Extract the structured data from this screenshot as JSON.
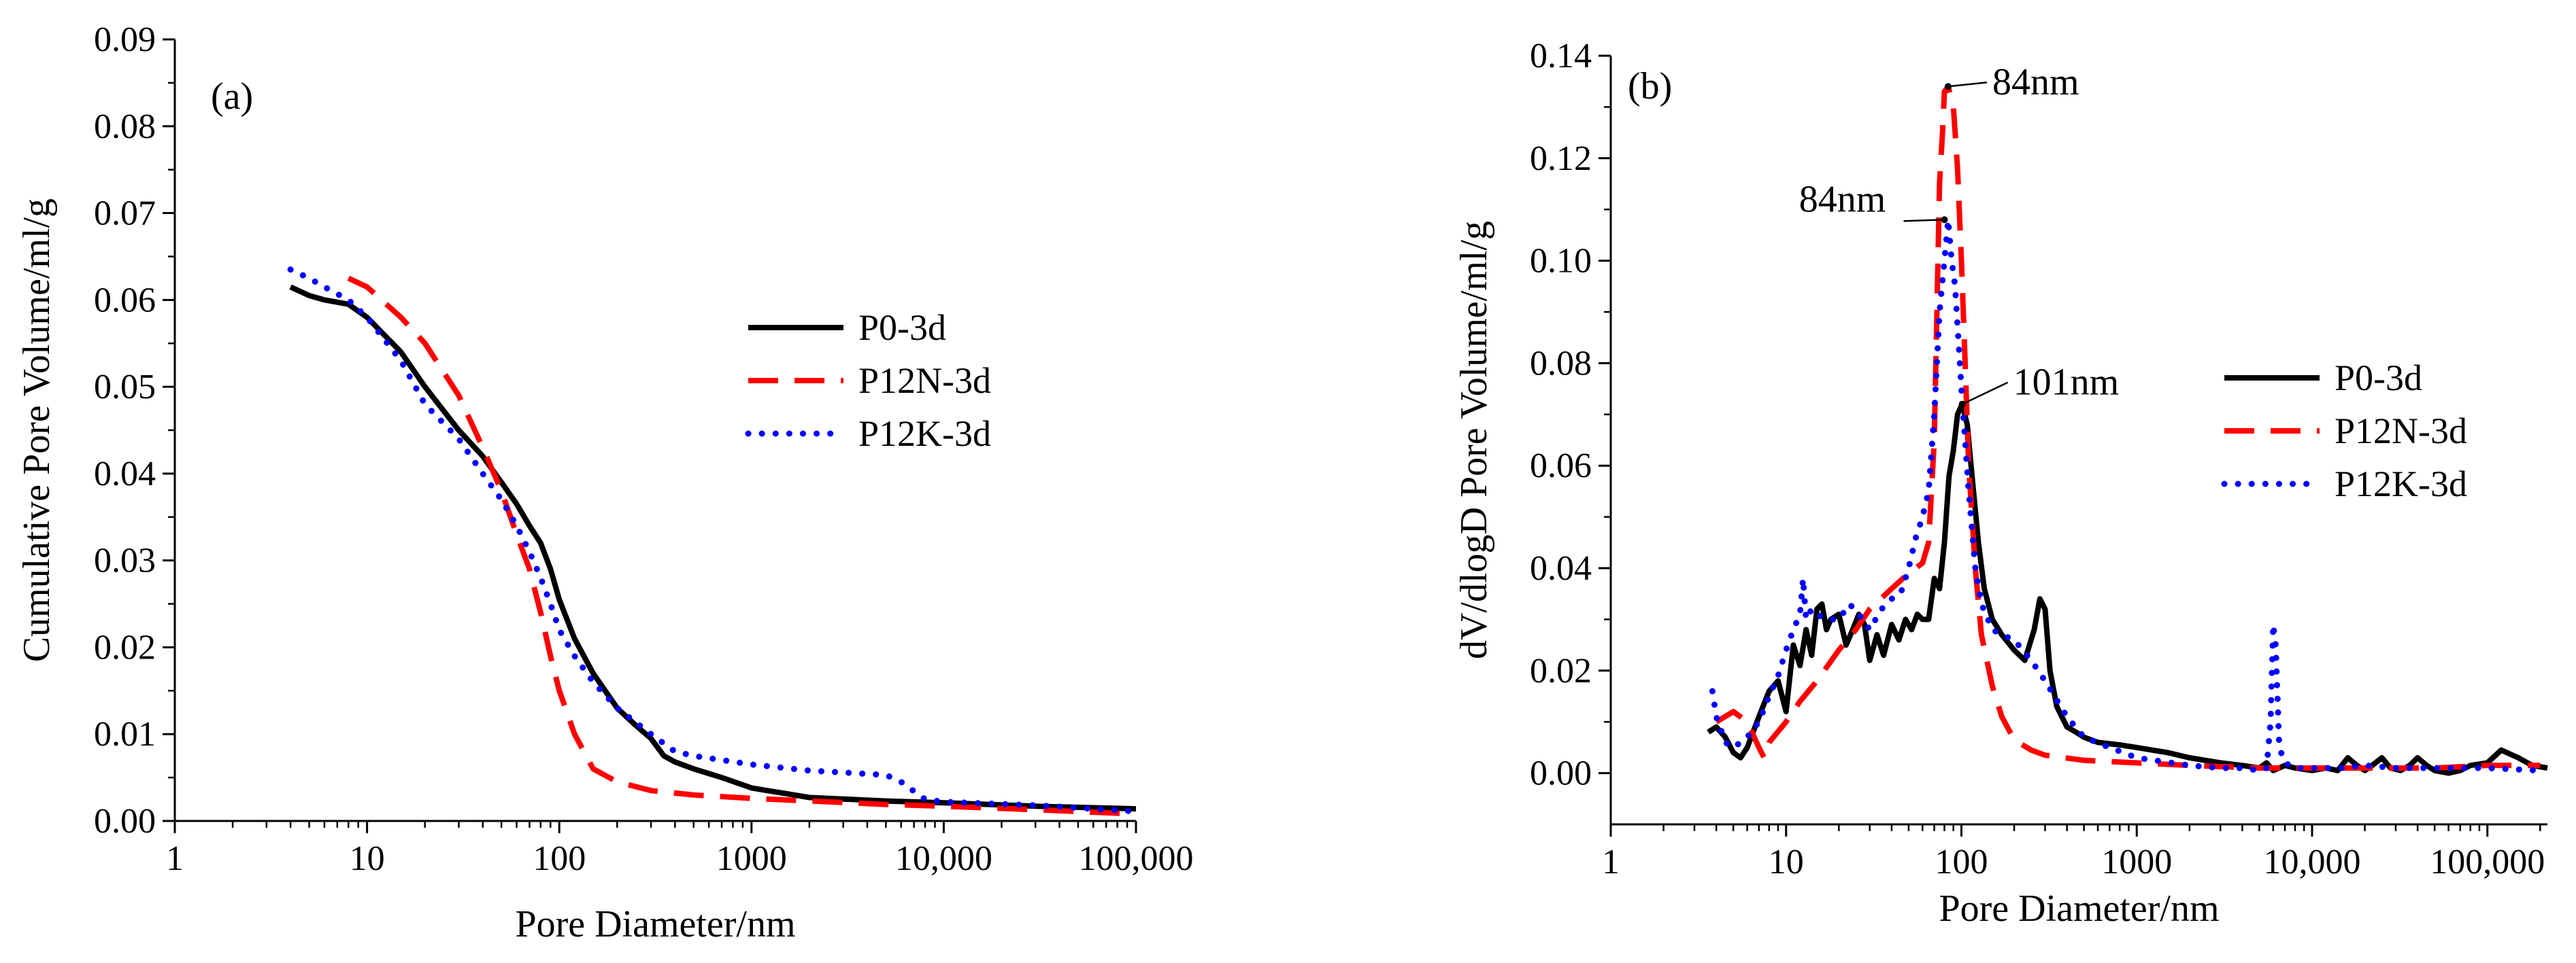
{
  "chart_data": [
    {
      "panel": "(a)",
      "type": "line",
      "title": "",
      "xlabel": "Pore Diameter/nm",
      "ylabel": "Cumulative Pore Volume/ml/g",
      "xscale": "log",
      "xlim": [
        1,
        100000
      ],
      "ylim": [
        0,
        0.09
      ],
      "xticks": [
        1,
        10,
        100,
        1000,
        10000,
        100000
      ],
      "xtick_labels": [
        "1",
        "10",
        "100",
        "1000",
        "10,000",
        "100,000"
      ],
      "yticks": [
        0,
        0.01,
        0.02,
        0.03,
        0.04,
        0.05,
        0.06,
        0.07,
        0.08,
        0.09
      ],
      "ytick_labels": [
        "0.00",
        "0.01",
        "0.02",
        "0.03",
        "0.04",
        "0.05",
        "0.06",
        "0.07",
        "0.08",
        "0.09"
      ],
      "legend_position": "center-right",
      "series": [
        {
          "name": "P0-3d",
          "color": "#000000",
          "style": "solid",
          "x": [
            4,
            5,
            6,
            8,
            10,
            15,
            20,
            30,
            40,
            50,
            60,
            70,
            80,
            90,
            100,
            120,
            150,
            200,
            250,
            300,
            350,
            400,
            500,
            700,
            1000,
            2000,
            5000,
            10000,
            30000,
            100000
          ],
          "y": [
            0.0615,
            0.0605,
            0.06,
            0.0595,
            0.058,
            0.054,
            0.05,
            0.045,
            0.042,
            0.039,
            0.0365,
            0.034,
            0.032,
            0.029,
            0.0255,
            0.021,
            0.017,
            0.013,
            0.011,
            0.0095,
            0.0075,
            0.0068,
            0.006,
            0.005,
            0.0038,
            0.0027,
            0.0023,
            0.0021,
            0.0017,
            0.0014
          ]
        },
        {
          "name": "P12N-3d",
          "color": "#ff0000",
          "style": "dashed",
          "x": [
            8,
            10,
            15,
            20,
            30,
            40,
            50,
            60,
            70,
            80,
            90,
            100,
            120,
            150,
            200,
            300,
            500,
            1000,
            2000,
            5000,
            10000,
            30000,
            100000
          ],
          "y": [
            0.0625,
            0.0615,
            0.058,
            0.055,
            0.049,
            0.043,
            0.038,
            0.033,
            0.029,
            0.024,
            0.019,
            0.015,
            0.01,
            0.006,
            0.0045,
            0.0035,
            0.003,
            0.0026,
            0.0023,
            0.0019,
            0.0017,
            0.0013,
            0.0008
          ]
        },
        {
          "name": "P12K-3d",
          "color": "#0000ff",
          "style": "dotted",
          "x": [
            4,
            5,
            6,
            8,
            10,
            15,
            20,
            30,
            40,
            50,
            60,
            70,
            80,
            90,
            100,
            120,
            150,
            200,
            300,
            400,
            500,
            1000,
            2000,
            5000,
            6000,
            8000,
            10000,
            30000,
            100000
          ],
          "y": [
            0.0635,
            0.0625,
            0.0615,
            0.06,
            0.058,
            0.053,
            0.048,
            0.044,
            0.04,
            0.037,
            0.034,
            0.031,
            0.028,
            0.025,
            0.022,
            0.019,
            0.016,
            0.013,
            0.01,
            0.008,
            0.0075,
            0.0065,
            0.0058,
            0.0053,
            0.0045,
            0.0025,
            0.0022,
            0.0018,
            0.0011
          ]
        }
      ]
    },
    {
      "panel": "(b)",
      "type": "line",
      "title": "",
      "xlabel": "Pore Diameter/nm",
      "ylabel": "dV/dlogD Pore Volume/ml/g",
      "xscale": "log",
      "xlim": [
        1,
        220000
      ],
      "ylim": [
        -0.01,
        0.14
      ],
      "xticks": [
        1,
        10,
        100,
        1000,
        10000,
        100000
      ],
      "xtick_labels": [
        "1",
        "10",
        "100",
        "1000",
        "10,000",
        "100,000"
      ],
      "yticks": [
        0,
        0.02,
        0.04,
        0.06,
        0.08,
        0.1,
        0.12,
        0.14
      ],
      "ytick_labels": [
        "0.00",
        "0.02",
        "0.04",
        "0.06",
        "0.08",
        "0.10",
        "0.12",
        "0.14"
      ],
      "legend_position": "center-right",
      "annotations": [
        {
          "text": "84nm",
          "x": 84,
          "y": 0.134,
          "side": "right"
        },
        {
          "text": "84nm",
          "x": 80,
          "y": 0.108,
          "side": "left"
        },
        {
          "text": "101nm",
          "x": 101,
          "y": 0.072,
          "side": "right"
        }
      ],
      "series": [
        {
          "name": "P0-3d",
          "color": "#000000",
          "style": "solid",
          "x": [
            3.6,
            4,
            4.5,
            5,
            5.5,
            6,
            7,
            8,
            9,
            10,
            11,
            12,
            13,
            14,
            15,
            16,
            17,
            18,
            20,
            22,
            24,
            26,
            28,
            30,
            33,
            36,
            40,
            44,
            48,
            52,
            56,
            60,
            65,
            70,
            75,
            80,
            85,
            90,
            95,
            101,
            108,
            115,
            125,
            135,
            150,
            170,
            200,
            230,
            260,
            280,
            300,
            320,
            350,
            400,
            450,
            500,
            600,
            800,
            1000,
            1500,
            2000,
            3000,
            4000,
            5000,
            5500,
            6000,
            7000,
            8000,
            10000,
            12000,
            14000,
            16000,
            18000,
            20000,
            22000,
            25000,
            28000,
            32000,
            36000,
            40000,
            45000,
            50000,
            60000,
            70000,
            80000,
            100000,
            120000,
            150000,
            180000,
            220000
          ],
          "y": [
            0.008,
            0.009,
            0.007,
            0.004,
            0.003,
            0.005,
            0.011,
            0.016,
            0.018,
            0.012,
            0.025,
            0.021,
            0.028,
            0.023,
            0.032,
            0.033,
            0.028,
            0.03,
            0.031,
            0.025,
            0.028,
            0.031,
            0.029,
            0.022,
            0.027,
            0.023,
            0.029,
            0.026,
            0.03,
            0.028,
            0.031,
            0.03,
            0.03,
            0.038,
            0.036,
            0.045,
            0.058,
            0.063,
            0.07,
            0.072,
            0.068,
            0.058,
            0.045,
            0.036,
            0.03,
            0.027,
            0.024,
            0.022,
            0.028,
            0.034,
            0.032,
            0.02,
            0.013,
            0.009,
            0.008,
            0.007,
            0.006,
            0.0055,
            0.005,
            0.004,
            0.003,
            0.002,
            0.0015,
            0.001,
            0.002,
            0.0005,
            0.0015,
            0.001,
            0.0005,
            0.001,
            0.0005,
            0.003,
            0.0015,
            0.0005,
            0.0015,
            0.003,
            0.001,
            0.0005,
            0.0015,
            0.003,
            0.0015,
            0.0005,
            0,
            0.0005,
            0.0015,
            0.002,
            0.0045,
            0.003,
            0.0015,
            0.001
          ]
        },
        {
          "name": "P12N-3d",
          "color": "#ff0000",
          "style": "dashed",
          "x": [
            4,
            5,
            6,
            7,
            7.5,
            8,
            10,
            12,
            15,
            20,
            25,
            30,
            40,
            50,
            60,
            65,
            70,
            75,
            78,
            80,
            84,
            90,
            95,
            100,
            105,
            110,
            120,
            130,
            150,
            170,
            200,
            250,
            300,
            500,
            1000,
            2000,
            5000,
            10000,
            20000,
            50000,
            100000,
            200000
          ],
          "y": [
            0.01,
            0.012,
            0.01,
            0.005,
            0.003,
            0.006,
            0.01,
            0.014,
            0.018,
            0.024,
            0.028,
            0.032,
            0.036,
            0.039,
            0.041,
            0.045,
            0.065,
            0.115,
            0.125,
            0.133,
            0.134,
            0.13,
            0.118,
            0.1,
            0.08,
            0.06,
            0.04,
            0.027,
            0.017,
            0.011,
            0.0065,
            0.0045,
            0.0035,
            0.0025,
            0.002,
            0.0015,
            0.001,
            0.001,
            0.001,
            0.001,
            0.0015,
            0.0015
          ]
        },
        {
          "name": "P12K-3d",
          "color": "#0000ff",
          "style": "dotted",
          "x": [
            3.8,
            4,
            4.5,
            5,
            5.5,
            6,
            7,
            8,
            9,
            10,
            11,
            12,
            12.5,
            13,
            14,
            15,
            17,
            20,
            23,
            26,
            30,
            35,
            40,
            45,
            50,
            55,
            60,
            65,
            70,
            75,
            80,
            84,
            88,
            92,
            96,
            100,
            110,
            120,
            130,
            150,
            170,
            200,
            250,
            300,
            400,
            500,
            700,
            1000,
            2000,
            3000,
            4000,
            5000,
            5500,
            5800,
            6000,
            6200,
            6500,
            7000,
            8000,
            10000,
            15000,
            20000,
            30000,
            50000,
            100000,
            200000
          ],
          "y": [
            0.016,
            0.011,
            0.006,
            0.005,
            0.006,
            0.007,
            0.01,
            0.015,
            0.019,
            0.024,
            0.028,
            0.031,
            0.038,
            0.03,
            0.032,
            0.031,
            0.03,
            0.03,
            0.033,
            0.031,
            0.028,
            0.032,
            0.034,
            0.035,
            0.04,
            0.046,
            0.05,
            0.055,
            0.07,
            0.09,
            0.1,
            0.108,
            0.1,
            0.095,
            0.085,
            0.075,
            0.055,
            0.04,
            0.033,
            0.028,
            0.027,
            0.026,
            0.022,
            0.018,
            0.011,
            0.007,
            0.005,
            0.003,
            0.0015,
            0.001,
            0.001,
            0.0005,
            0.001,
            0.01,
            0.029,
            0.025,
            0.005,
            0.002,
            0.001,
            0.001,
            0.001,
            0.0015,
            0.001,
            0.001,
            0.001,
            0.0005
          ]
        }
      ]
    }
  ]
}
